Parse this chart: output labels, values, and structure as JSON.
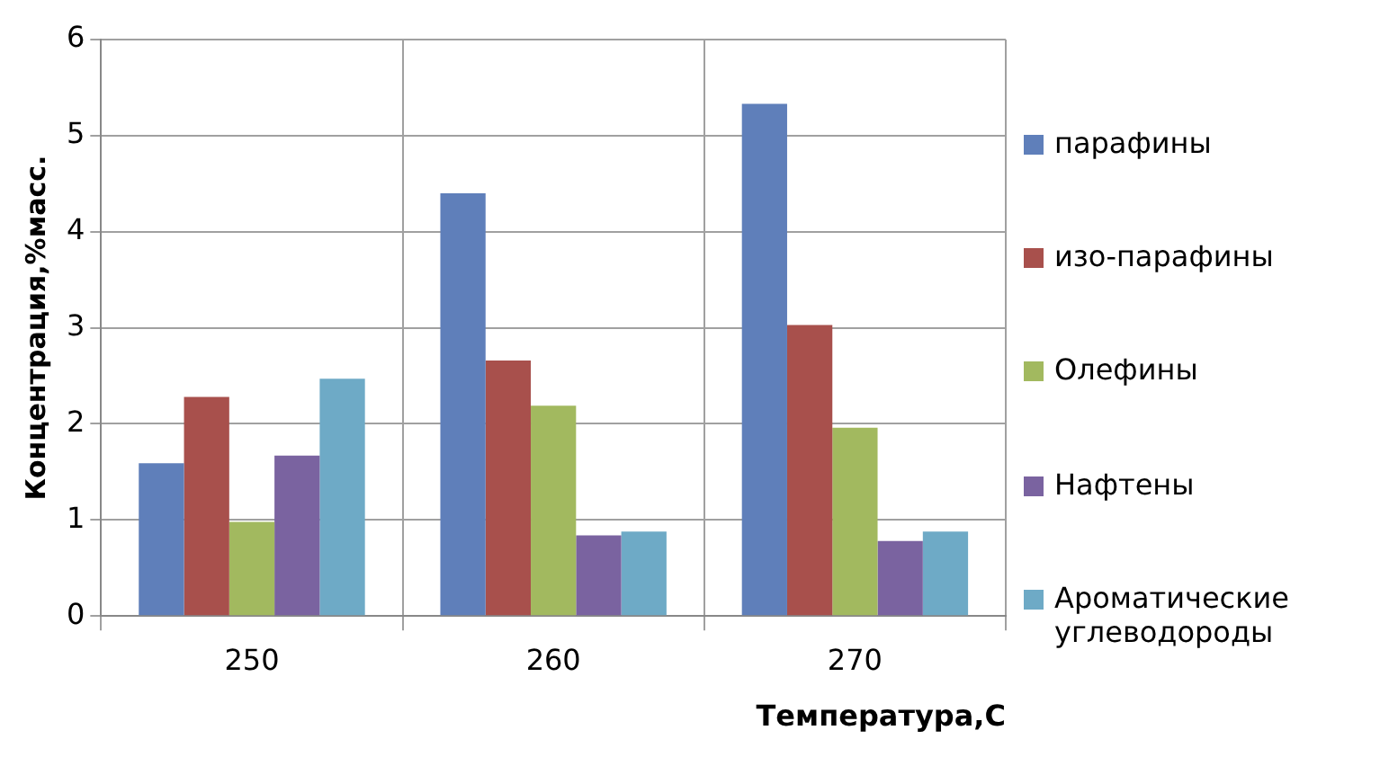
{
  "chart_data": {
    "type": "bar",
    "xlabel": "Температура,С",
    "ylabel": "Концентрация,%масс.",
    "categories": [
      "250",
      "260",
      "270"
    ],
    "series": [
      {
        "name": "парафины",
        "color": "#5f7fba",
        "values": [
          1.59,
          4.4,
          5.33
        ]
      },
      {
        "name": "изо-парафины",
        "color": "#a8504c",
        "values": [
          2.28,
          2.66,
          3.03
        ]
      },
      {
        "name": "Олефины",
        "color": "#a2b95f",
        "values": [
          0.98,
          2.19,
          1.96
        ]
      },
      {
        "name": "Нафтены",
        "color": "#7a63a0",
        "values": [
          1.67,
          0.84,
          0.78
        ]
      },
      {
        "name": "Ароматические углеводороды",
        "color": "#6eaac6",
        "values": [
          2.47,
          0.88,
          0.88
        ]
      }
    ],
    "ylim": [
      0,
      6
    ],
    "yticks": [
      0,
      1,
      2,
      3,
      4,
      5,
      6
    ],
    "grid": true,
    "legend": "right"
  }
}
